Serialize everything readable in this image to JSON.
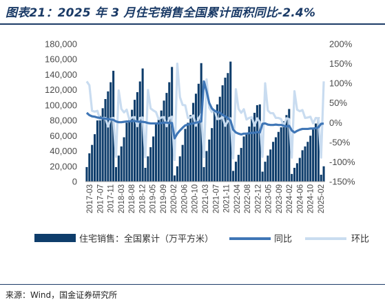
{
  "title": "图表21：2025 年 3 月住宅销售全国累计面积同比-2.4%",
  "source": "来源：Wind，国金证券研究所",
  "colors": {
    "bar": "#0e3d6b",
    "yoy": "#3f76b6",
    "mom": "#c9dcf0",
    "title": "#1a3a66"
  },
  "chart_data": {
    "type": "bar",
    "title": "图表21：2025 年 3 月住宅销售全国累计面积同比-2.4%",
    "xlabel": "",
    "ylabel": "",
    "grid": false,
    "legend_position": "bottom",
    "x_tick_labels": [
      "2017-03",
      "2017-07",
      "2017-11",
      "2018-03",
      "2018-08",
      "2018-12",
      "2019-05",
      "2019-09",
      "2020-02",
      "2020-06",
      "2020-10",
      "2021-03",
      "2021-07",
      "2021-11",
      "2022-04",
      "2022-08",
      "2022-12",
      "2023-05",
      "2023-09",
      "2024-02",
      "2024-06",
      "2024-10",
      "2025-02"
    ],
    "y_left": {
      "ylim": [
        0,
        180000
      ],
      "ticks": [
        "0",
        "20,000",
        "40,000",
        "60,000",
        "80,000",
        "100,000",
        "120,000",
        "140,000",
        "160,000",
        "180,000"
      ]
    },
    "y_right": {
      "ylim": [
        -150,
        200
      ],
      "ticks": [
        "-150%",
        "-100%",
        "-50%",
        "0%",
        "50%",
        "100%",
        "150%",
        "200%"
      ]
    },
    "categories": [
      "2017-02",
      "2017-03",
      "2017-04",
      "2017-05",
      "2017-06",
      "2017-07",
      "2017-08",
      "2017-09",
      "2017-10",
      "2017-11",
      "2017-12",
      "2018-02",
      "2018-03",
      "2018-04",
      "2018-05",
      "2018-06",
      "2018-07",
      "2018-08",
      "2018-09",
      "2018-10",
      "2018-11",
      "2018-12",
      "2019-02",
      "2019-03",
      "2019-04",
      "2019-05",
      "2019-06",
      "2019-07",
      "2019-08",
      "2019-09",
      "2019-10",
      "2019-11",
      "2019-12",
      "2020-02",
      "2020-03",
      "2020-04",
      "2020-05",
      "2020-06",
      "2020-07",
      "2020-08",
      "2020-09",
      "2020-10",
      "2020-11",
      "2020-12",
      "2021-02",
      "2021-03",
      "2021-04",
      "2021-05",
      "2021-06",
      "2021-07",
      "2021-08",
      "2021-09",
      "2021-10",
      "2021-11",
      "2021-12",
      "2022-02",
      "2022-03",
      "2022-04",
      "2022-05",
      "2022-06",
      "2022-07",
      "2022-08",
      "2022-09",
      "2022-10",
      "2022-11",
      "2022-12",
      "2023-02",
      "2023-03",
      "2023-04",
      "2023-05",
      "2023-06",
      "2023-07",
      "2023-08",
      "2023-09",
      "2023-10",
      "2023-11",
      "2023-12",
      "2024-02",
      "2024-03",
      "2024-04",
      "2024-05",
      "2024-06",
      "2024-07",
      "2024-08",
      "2024-09",
      "2024-10",
      "2024-11",
      "2024-12",
      "2025-02",
      "2025-03"
    ],
    "series": [
      {
        "name": "住宅销售：全国累计（万平方米）",
        "axis": "left",
        "type": "bar",
        "values": [
          19000,
          37000,
          48000,
          62000,
          80000,
          86000,
          96000,
          108000,
          118000,
          130000,
          145000,
          19000,
          34000,
          46000,
          58000,
          77000,
          83000,
          94000,
          107000,
          117000,
          131000,
          148000,
          18000,
          33000,
          45000,
          59000,
          75000,
          82000,
          93000,
          106000,
          116000,
          130000,
          150000,
          8000,
          20000,
          33000,
          48000,
          69000,
          77000,
          87000,
          103000,
          115000,
          128000,
          155000,
          19000,
          40000,
          55000,
          70000,
          93000,
          101000,
          111000,
          126000,
          136000,
          142000,
          157000,
          14000,
          26000,
          35000,
          44000,
          59000,
          64000,
          72000,
          82000,
          90000,
          100000,
          101000,
          13000,
          26000,
          34000,
          42000,
          52000,
          58000,
          65000,
          71000,
          79000,
          87000,
          95000,
          10000,
          18000,
          24000,
          31000,
          41000,
          46000,
          52000,
          60000,
          68000,
          76000,
          84000,
          9000,
          20000
        ]
      },
      {
        "name": "同比",
        "axis": "right",
        "type": "line",
        "values": [
          25,
          19,
          16,
          15,
          13,
          12,
          11,
          10,
          9,
          8,
          7,
          3,
          1,
          1,
          2,
          3,
          3,
          4,
          4,
          3,
          2,
          2,
          1,
          -1,
          -2,
          -2,
          -2,
          -2,
          -1,
          0,
          0,
          -1,
          -1,
          -40,
          -28,
          -20,
          -13,
          -7,
          -5,
          -3,
          -2,
          0,
          1,
          3,
          105,
          80,
          50,
          36,
          30,
          27,
          25,
          20,
          16,
          12,
          5,
          -18,
          -25,
          -28,
          -30,
          -28,
          -28,
          -27,
          -26,
          -26,
          -24,
          -25,
          -3,
          -2,
          -5,
          -6,
          -6,
          -5,
          -6,
          -6,
          -8,
          -10,
          -8,
          -20,
          -25,
          -21,
          -18,
          -16,
          -16,
          -16,
          -15,
          -15,
          -14,
          -12,
          -3,
          -2.4
        ]
      },
      {
        "name": "环比",
        "axis": "right",
        "type": "line",
        "values": [
          105,
          95,
          30,
          28,
          30,
          8,
          12,
          12,
          -10,
          10,
          12,
          -87,
          82,
          35,
          26,
          33,
          8,
          13,
          14,
          -9,
          12,
          13,
          -88,
          83,
          36,
          31,
          27,
          9,
          13,
          14,
          -9,
          12,
          15,
          -95,
          150,
          65,
          45,
          44,
          12,
          13,
          18,
          -8,
          11,
          21,
          -88,
          110,
          38,
          27,
          32,
          9,
          10,
          14,
          -8,
          4,
          11,
          -91,
          85,
          35,
          25,
          34,
          8,
          12,
          14,
          -8,
          11,
          1,
          -87,
          100,
          31,
          24,
          24,
          12,
          12,
          9,
          -9,
          11,
          9,
          -89,
          80,
          33,
          29,
          32,
          12,
          13,
          15,
          -2,
          12,
          11,
          -89,
          105
        ]
      }
    ]
  }
}
